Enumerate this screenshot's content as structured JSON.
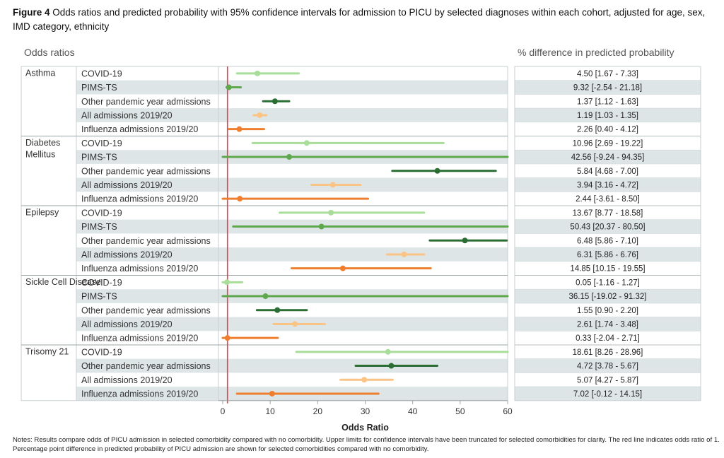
{
  "figure": {
    "label": "Figure 4",
    "caption": "Odds ratios and predicted probability with 95% confidence intervals for admission to PICU by selected diagnoses within each cohort, adjusted for age, sex, IMD category, ethnicity"
  },
  "headers": {
    "left": "Odds ratios",
    "right": "% difference in predicted probability"
  },
  "notes": "Notes: Results compare odds of PICU admission in selected comorbidity compared with no comorbidity. Upper limits for confidence intervals have been truncated for selected comorbidities for clarity. The red line indicates odds ratio of 1. Percentage point difference in predicted probability of PICU admission are shown for selected comorbidities compared with no comorbidity.",
  "colors": {
    "COVID-19": "#a8dd9a",
    "PIMS-TS": "#5fa84d",
    "Other pandemic year admissions": "#2b6e34",
    "All admissions 2019/20": "#fbc487",
    "Influenza admissions 2019/20": "#ef7f2e",
    "reference_line": "#e0454f",
    "row_shade": "#dde5e6"
  },
  "chart_data": {
    "type": "forest",
    "xlabel": "Odds Ratio",
    "xlim": [
      0,
      60
    ],
    "xticks": [
      0,
      10,
      20,
      30,
      40,
      50,
      60
    ],
    "reference_line": 1,
    "groups": [
      {
        "name": "Asthma",
        "rows": [
          {
            "cohort": "COVID-19",
            "or": 7.3,
            "lo": 3.0,
            "hi": 16.0,
            "pp": "4.50 [1.67 - 7.33]"
          },
          {
            "cohort": "PIMS-TS",
            "or": 1.3,
            "lo": 0.8,
            "hi": 3.8,
            "pp": "9.32 [-2.54 - 21.18]"
          },
          {
            "cohort": "Other pandemic year admissions",
            "or": 11.0,
            "lo": 8.5,
            "hi": 14.0,
            "pp": "1.37 [1.12 - 1.63]"
          },
          {
            "cohort": "All admissions 2019/20",
            "or": 7.8,
            "lo": 6.5,
            "hi": 9.2,
            "pp": "1.19 [1.03 - 1.35]"
          },
          {
            "cohort": "Influenza admissions 2019/20",
            "or": 3.5,
            "lo": 1.3,
            "hi": 8.7,
            "pp": "2.26 [0.40 - 4.12]"
          }
        ]
      },
      {
        "name": "Diabetes Mellitus",
        "rows": [
          {
            "cohort": "COVID-19",
            "or": 17.7,
            "lo": 6.3,
            "hi": 46.5,
            "pp": "10.96 [2.69 - 19.22]"
          },
          {
            "cohort": "PIMS-TS",
            "or": 14.0,
            "lo": 0.0,
            "hi": 60.0,
            "pp": "42.56 [-9.24 - 94.35]"
          },
          {
            "cohort": "Other pandemic year admissions",
            "or": 45.2,
            "lo": 35.7,
            "hi": 57.5,
            "pp": "5.84 [4.68 - 7.00]"
          },
          {
            "cohort": "All admissions 2019/20",
            "or": 23.2,
            "lo": 18.7,
            "hi": 29.0,
            "pp": "3.94 [3.16 - 4.72]"
          },
          {
            "cohort": "Influenza admissions 2019/20",
            "or": 3.6,
            "lo": 0.0,
            "hi": 30.6,
            "pp": "2.44 [-3.61 - 8.50]"
          }
        ]
      },
      {
        "name": "Epilepsy",
        "rows": [
          {
            "cohort": "COVID-19",
            "or": 22.8,
            "lo": 12.0,
            "hi": 42.4,
            "pp": "13.67 [8.77 - 18.58]"
          },
          {
            "cohort": "PIMS-TS",
            "or": 20.8,
            "lo": 2.2,
            "hi": 60.0,
            "pp": "50.43 [20.37 - 80.50]"
          },
          {
            "cohort": "Other pandemic year admissions",
            "or": 51.0,
            "lo": 43.6,
            "hi": 59.8,
            "pp": "6.48 [5.86 - 7.10]"
          },
          {
            "cohort": "All admissions 2019/20",
            "or": 38.2,
            "lo": 34.6,
            "hi": 42.4,
            "pp": "6.31 [5.86 - 6.76]"
          },
          {
            "cohort": "Influenza admissions 2019/20",
            "or": 25.3,
            "lo": 14.5,
            "hi": 43.8,
            "pp": "14.85 [10.15 - 19.55]"
          }
        ]
      },
      {
        "name": "Sickle Cell Disease",
        "rows": [
          {
            "cohort": "COVID-19",
            "or": 0.9,
            "lo": 0.0,
            "hi": 4.1,
            "pp": "0.05 [-1.16 - 1.27]"
          },
          {
            "cohort": "PIMS-TS",
            "or": 9.0,
            "lo": 0.0,
            "hi": 60.0,
            "pp": "36.15 [-19.02 - 91.32]"
          },
          {
            "cohort": "Other pandemic year admissions",
            "or": 11.5,
            "lo": 7.2,
            "hi": 17.7,
            "pp": "1.55 [0.90 - 2.20]"
          },
          {
            "cohort": "All admissions 2019/20",
            "or": 15.2,
            "lo": 10.7,
            "hi": 21.5,
            "pp": "2.61 [1.74 - 3.48]"
          },
          {
            "cohort": "Influenza admissions 2019/20",
            "or": 1.0,
            "lo": 0.0,
            "hi": 11.6,
            "pp": "0.33 [-2.04 - 2.71]"
          }
        ]
      },
      {
        "name": "Trisomy 21",
        "rows": [
          {
            "cohort": "COVID-19",
            "or": 34.8,
            "lo": 15.5,
            "hi": 60.0,
            "pp": "18.61 [8.26 - 28.96]"
          },
          {
            "cohort": "Other pandemic year admissions",
            "or": 35.5,
            "lo": 28.0,
            "hi": 45.2,
            "pp": "4.72 [3.78 - 5.67]"
          },
          {
            "cohort": "All admissions 2019/20",
            "or": 29.8,
            "lo": 24.8,
            "hi": 35.8,
            "pp": "5.07 [4.27 - 5.87]"
          },
          {
            "cohort": "Influenza admissions 2019/20",
            "or": 10.4,
            "lo": 3.0,
            "hi": 32.8,
            "pp": "7.02 [-0.12 - 14.15]"
          }
        ]
      }
    ]
  }
}
